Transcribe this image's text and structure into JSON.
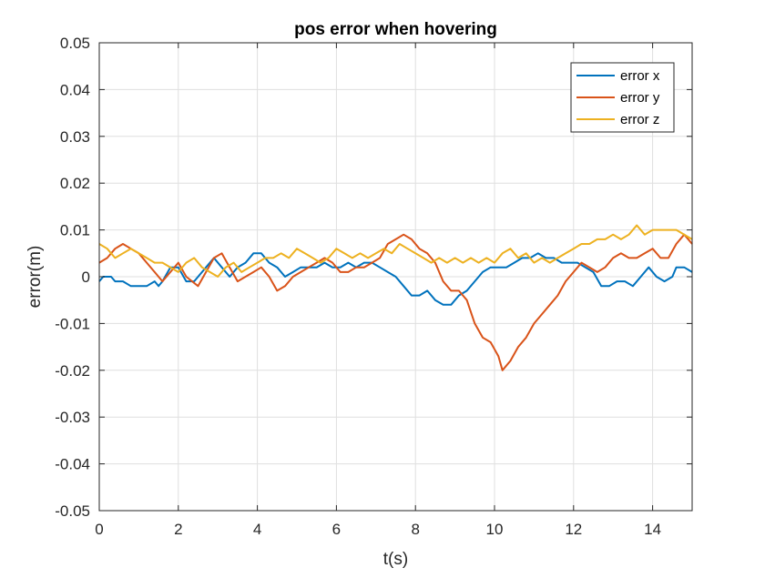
{
  "chart_data": {
    "type": "line",
    "title": "pos error when hovering",
    "xlabel": "t(s)",
    "ylabel": "error(m)",
    "xlim": [
      0,
      15
    ],
    "ylim": [
      -0.05,
      0.05
    ],
    "xticks": [
      0,
      2,
      4,
      6,
      8,
      10,
      12,
      14
    ],
    "yticks": [
      -0.05,
      -0.04,
      -0.03,
      -0.02,
      -0.01,
      0,
      0.01,
      0.02,
      0.03,
      0.04,
      0.05
    ],
    "xtick_labels": [
      "0",
      "2",
      "4",
      "6",
      "8",
      "10",
      "12",
      "14"
    ],
    "ytick_labels": [
      "-0.05",
      "-0.04",
      "-0.03",
      "-0.02",
      "-0.01",
      "0",
      "0.01",
      "0.02",
      "0.03",
      "0.04",
      "0.05"
    ],
    "grid": true,
    "legend_position": "top-right",
    "series": [
      {
        "name": "error x",
        "color": "#0072BD",
        "points": [
          [
            0,
            -0.001
          ],
          [
            0.1,
            0
          ],
          [
            0.3,
            0
          ],
          [
            0.4,
            -0.001
          ],
          [
            0.6,
            -0.001
          ],
          [
            0.8,
            -0.002
          ],
          [
            1.0,
            -0.002
          ],
          [
            1.2,
            -0.002
          ],
          [
            1.4,
            -0.001
          ],
          [
            1.5,
            -0.002
          ],
          [
            1.6,
            -0.001
          ],
          [
            1.8,
            0.002
          ],
          [
            2.0,
            0.002
          ],
          [
            2.2,
            -0.001
          ],
          [
            2.4,
            -0.001
          ],
          [
            2.5,
            0
          ],
          [
            2.7,
            0.002
          ],
          [
            2.9,
            0.004
          ],
          [
            3.1,
            0.002
          ],
          [
            3.3,
            0
          ],
          [
            3.5,
            0.002
          ],
          [
            3.7,
            0.003
          ],
          [
            3.9,
            0.005
          ],
          [
            4.1,
            0.005
          ],
          [
            4.3,
            0.003
          ],
          [
            4.5,
            0.002
          ],
          [
            4.7,
            0
          ],
          [
            4.9,
            0.001
          ],
          [
            5.1,
            0.002
          ],
          [
            5.3,
            0.002
          ],
          [
            5.5,
            0.002
          ],
          [
            5.7,
            0.003
          ],
          [
            5.9,
            0.002
          ],
          [
            6.1,
            0.002
          ],
          [
            6.3,
            0.003
          ],
          [
            6.5,
            0.002
          ],
          [
            6.7,
            0.003
          ],
          [
            6.9,
            0.003
          ],
          [
            7.1,
            0.002
          ],
          [
            7.3,
            0.001
          ],
          [
            7.5,
            0
          ],
          [
            7.7,
            -0.002
          ],
          [
            7.9,
            -0.004
          ],
          [
            8.1,
            -0.004
          ],
          [
            8.3,
            -0.003
          ],
          [
            8.5,
            -0.005
          ],
          [
            8.7,
            -0.006
          ],
          [
            8.9,
            -0.006
          ],
          [
            9.1,
            -0.004
          ],
          [
            9.3,
            -0.003
          ],
          [
            9.5,
            -0.001
          ],
          [
            9.7,
            0.001
          ],
          [
            9.9,
            0.002
          ],
          [
            10.1,
            0.002
          ],
          [
            10.3,
            0.002
          ],
          [
            10.5,
            0.003
          ],
          [
            10.7,
            0.004
          ],
          [
            10.9,
            0.004
          ],
          [
            11.1,
            0.005
          ],
          [
            11.3,
            0.004
          ],
          [
            11.5,
            0.004
          ],
          [
            11.7,
            0.003
          ],
          [
            11.9,
            0.003
          ],
          [
            12.1,
            0.003
          ],
          [
            12.3,
            0.002
          ],
          [
            12.5,
            0.001
          ],
          [
            12.7,
            -0.002
          ],
          [
            12.9,
            -0.002
          ],
          [
            13.1,
            -0.001
          ],
          [
            13.3,
            -0.001
          ],
          [
            13.5,
            -0.002
          ],
          [
            13.7,
            0
          ],
          [
            13.9,
            0.002
          ],
          [
            14.1,
            0
          ],
          [
            14.3,
            -0.001
          ],
          [
            14.5,
            0
          ],
          [
            14.6,
            0.002
          ],
          [
            14.8,
            0.002
          ],
          [
            15.0,
            0.001
          ]
        ]
      },
      {
        "name": "error y",
        "color": "#D95319",
        "points": [
          [
            0,
            0.003
          ],
          [
            0.2,
            0.004
          ],
          [
            0.4,
            0.006
          ],
          [
            0.6,
            0.007
          ],
          [
            0.8,
            0.006
          ],
          [
            1.0,
            0.005
          ],
          [
            1.2,
            0.003
          ],
          [
            1.4,
            0.001
          ],
          [
            1.6,
            -0.001
          ],
          [
            1.8,
            0.001
          ],
          [
            2.0,
            0.003
          ],
          [
            2.2,
            0
          ],
          [
            2.5,
            -0.002
          ],
          [
            2.7,
            0.001
          ],
          [
            2.9,
            0.004
          ],
          [
            3.1,
            0.005
          ],
          [
            3.3,
            0.002
          ],
          [
            3.5,
            -0.001
          ],
          [
            3.7,
            0
          ],
          [
            3.9,
            0.001
          ],
          [
            4.1,
            0.002
          ],
          [
            4.3,
            0
          ],
          [
            4.5,
            -0.003
          ],
          [
            4.7,
            -0.002
          ],
          [
            4.9,
            0
          ],
          [
            5.1,
            0.001
          ],
          [
            5.3,
            0.002
          ],
          [
            5.5,
            0.003
          ],
          [
            5.7,
            0.004
          ],
          [
            5.9,
            0.003
          ],
          [
            6.1,
            0.001
          ],
          [
            6.3,
            0.001
          ],
          [
            6.5,
            0.002
          ],
          [
            6.7,
            0.002
          ],
          [
            6.9,
            0.003
          ],
          [
            7.1,
            0.004
          ],
          [
            7.3,
            0.007
          ],
          [
            7.5,
            0.008
          ],
          [
            7.7,
            0.009
          ],
          [
            7.9,
            0.008
          ],
          [
            8.1,
            0.006
          ],
          [
            8.3,
            0.005
          ],
          [
            8.5,
            0.003
          ],
          [
            8.7,
            -0.001
          ],
          [
            8.9,
            -0.003
          ],
          [
            9.1,
            -0.003
          ],
          [
            9.3,
            -0.005
          ],
          [
            9.5,
            -0.01
          ],
          [
            9.7,
            -0.013
          ],
          [
            9.9,
            -0.014
          ],
          [
            10.1,
            -0.017
          ],
          [
            10.2,
            -0.02
          ],
          [
            10.4,
            -0.018
          ],
          [
            10.6,
            -0.015
          ],
          [
            10.8,
            -0.013
          ],
          [
            11.0,
            -0.01
          ],
          [
            11.2,
            -0.008
          ],
          [
            11.4,
            -0.006
          ],
          [
            11.6,
            -0.004
          ],
          [
            11.8,
            -0.001
          ],
          [
            12.0,
            0.001
          ],
          [
            12.2,
            0.003
          ],
          [
            12.4,
            0.002
          ],
          [
            12.6,
            0.001
          ],
          [
            12.8,
            0.002
          ],
          [
            13.0,
            0.004
          ],
          [
            13.2,
            0.005
          ],
          [
            13.4,
            0.004
          ],
          [
            13.6,
            0.004
          ],
          [
            13.8,
            0.005
          ],
          [
            14.0,
            0.006
          ],
          [
            14.2,
            0.004
          ],
          [
            14.4,
            0.004
          ],
          [
            14.6,
            0.007
          ],
          [
            14.8,
            0.009
          ],
          [
            15.0,
            0.007
          ]
        ]
      },
      {
        "name": "error z",
        "color": "#EDB120",
        "points": [
          [
            0,
            0.007
          ],
          [
            0.2,
            0.006
          ],
          [
            0.4,
            0.004
          ],
          [
            0.6,
            0.005
          ],
          [
            0.8,
            0.006
          ],
          [
            1.0,
            0.005
          ],
          [
            1.2,
            0.004
          ],
          [
            1.4,
            0.003
          ],
          [
            1.6,
            0.003
          ],
          [
            1.8,
            0.002
          ],
          [
            2.0,
            0.001
          ],
          [
            2.2,
            0.003
          ],
          [
            2.4,
            0.004
          ],
          [
            2.6,
            0.002
          ],
          [
            2.8,
            0.001
          ],
          [
            3.0,
            0
          ],
          [
            3.2,
            0.002
          ],
          [
            3.4,
            0.003
          ],
          [
            3.6,
            0.001
          ],
          [
            3.8,
            0.002
          ],
          [
            4.0,
            0.003
          ],
          [
            4.2,
            0.004
          ],
          [
            4.4,
            0.004
          ],
          [
            4.6,
            0.005
          ],
          [
            4.8,
            0.004
          ],
          [
            5.0,
            0.006
          ],
          [
            5.2,
            0.005
          ],
          [
            5.4,
            0.004
          ],
          [
            5.6,
            0.003
          ],
          [
            5.8,
            0.004
          ],
          [
            6.0,
            0.006
          ],
          [
            6.2,
            0.005
          ],
          [
            6.4,
            0.004
          ],
          [
            6.6,
            0.005
          ],
          [
            6.8,
            0.004
          ],
          [
            7.0,
            0.005
          ],
          [
            7.2,
            0.006
          ],
          [
            7.4,
            0.005
          ],
          [
            7.6,
            0.007
          ],
          [
            7.8,
            0.006
          ],
          [
            8.0,
            0.005
          ],
          [
            8.2,
            0.004
          ],
          [
            8.4,
            0.003
          ],
          [
            8.6,
            0.004
          ],
          [
            8.8,
            0.003
          ],
          [
            9.0,
            0.004
          ],
          [
            9.2,
            0.003
          ],
          [
            9.4,
            0.004
          ],
          [
            9.6,
            0.003
          ],
          [
            9.8,
            0.004
          ],
          [
            10.0,
            0.003
          ],
          [
            10.2,
            0.005
          ],
          [
            10.4,
            0.006
          ],
          [
            10.6,
            0.004
          ],
          [
            10.8,
            0.005
          ],
          [
            11.0,
            0.003
          ],
          [
            11.2,
            0.004
          ],
          [
            11.4,
            0.003
          ],
          [
            11.6,
            0.004
          ],
          [
            11.8,
            0.005
          ],
          [
            12.0,
            0.006
          ],
          [
            12.2,
            0.007
          ],
          [
            12.4,
            0.007
          ],
          [
            12.6,
            0.008
          ],
          [
            12.8,
            0.008
          ],
          [
            13.0,
            0.009
          ],
          [
            13.2,
            0.008
          ],
          [
            13.4,
            0.009
          ],
          [
            13.6,
            0.011
          ],
          [
            13.8,
            0.009
          ],
          [
            14.0,
            0.01
          ],
          [
            14.2,
            0.01
          ],
          [
            14.4,
            0.01
          ],
          [
            14.6,
            0.01
          ],
          [
            14.8,
            0.009
          ],
          [
            15.0,
            0.008
          ]
        ]
      }
    ]
  }
}
